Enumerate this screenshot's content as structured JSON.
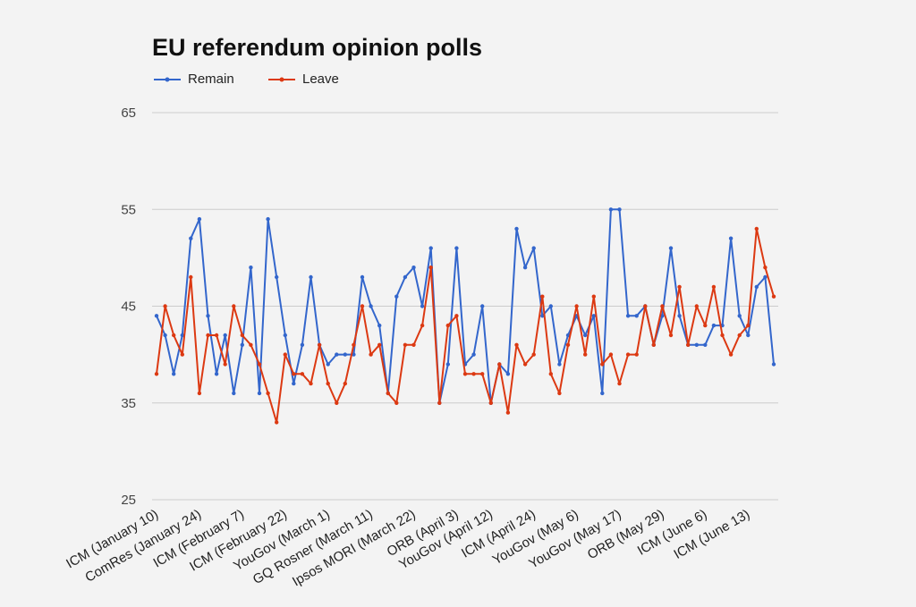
{
  "chart_data": {
    "type": "line",
    "title": "EU referendum opinion polls",
    "ylim": [
      25,
      65
    ],
    "yticks": [
      25,
      35,
      45,
      55,
      65
    ],
    "grid": true,
    "legend_position": "top-left",
    "x_tick_labels": [
      "ICM (January 10)",
      "ComRes (January 24)",
      "ICM (February 7)",
      "ICM (February 22)",
      "YouGov (March 1)",
      "GQ Rosner (March 11)",
      "Ipsos MORI (March 22)",
      "ORB (April 3)",
      "YouGov (April 12)",
      "ICM (April 24)",
      "YouGov (May 6)",
      "YouGov (May 17)",
      "ORB (May 29)",
      "ICM (June 6)",
      "ICM (June 13)"
    ],
    "series": [
      {
        "name": "Remain",
        "color": "#3366cc",
        "values": [
          44,
          42,
          38,
          42,
          52,
          54,
          44,
          38,
          42,
          36,
          41,
          49,
          36,
          54,
          48,
          42,
          37,
          41,
          48,
          41,
          39,
          40,
          40,
          40,
          48,
          45,
          43,
          36,
          46,
          48,
          49,
          45,
          51,
          35,
          39,
          51,
          39,
          40,
          45,
          35,
          39,
          38,
          53,
          49,
          51,
          44,
          45,
          39,
          42,
          44,
          42,
          44,
          36,
          55,
          55,
          44,
          44,
          45,
          41,
          44,
          51,
          44,
          41,
          41,
          41,
          43,
          43,
          52,
          44,
          42,
          47,
          48,
          39
        ]
      },
      {
        "name": "Leave",
        "color": "#dc3912",
        "values": [
          38,
          45,
          42,
          40,
          48,
          36,
          42,
          42,
          39,
          45,
          42,
          41,
          39,
          36,
          33,
          40,
          38,
          38,
          37,
          41,
          37,
          35,
          37,
          41,
          45,
          40,
          41,
          36,
          35,
          41,
          41,
          43,
          49,
          35,
          43,
          44,
          38,
          38,
          38,
          35,
          39,
          34,
          41,
          39,
          40,
          46,
          38,
          36,
          41,
          45,
          40,
          46,
          39,
          40,
          37,
          40,
          40,
          45,
          41,
          45,
          42,
          47,
          41,
          45,
          43,
          47,
          42,
          40,
          42,
          43,
          53,
          49,
          46
        ]
      }
    ]
  }
}
